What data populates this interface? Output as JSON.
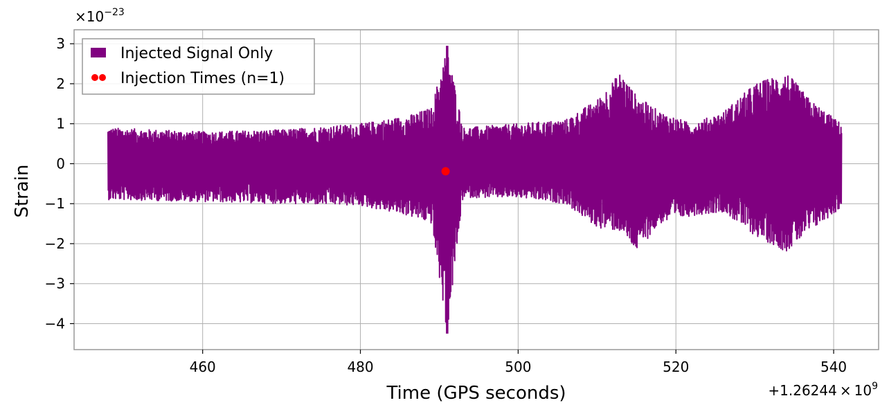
{
  "chart_data": {
    "type": "line",
    "xlabel": "Time (GPS seconds)",
    "ylabel": "Strain",
    "x_offset_label": "+1.26244",
    "x_offset_label_times": "×",
    "x_offset_label_base": "10",
    "x_offset_label_exp": "9",
    "y_multiplier_prefix": "×10",
    "y_multiplier_exp": "−23",
    "xlim": [
      443.7,
      545.7
    ],
    "ylim": [
      -4.65,
      3.35
    ],
    "x_ticks": [
      460,
      480,
      500,
      520,
      540
    ],
    "y_ticks": [
      -4,
      -3,
      -2,
      -1,
      0,
      1,
      2,
      3
    ],
    "x_tick_labels": [
      "460",
      "480",
      "500",
      "520",
      "540"
    ],
    "y_tick_labels": [
      "−4",
      "−3",
      "−2",
      "−1",
      "0",
      "1",
      "2",
      "3"
    ],
    "grid": true,
    "legend_position": "top-left",
    "series": [
      {
        "name": "Injected Signal Only",
        "color": "#800080",
        "x_range": [
          448,
          541
        ],
        "envelope": [
          {
            "x": 448,
            "upper": 0.9,
            "lower": -0.9
          },
          {
            "x": 460,
            "upper": 0.8,
            "lower": -0.95
          },
          {
            "x": 470,
            "upper": 0.85,
            "lower": -1.0
          },
          {
            "x": 480,
            "upper": 1.0,
            "lower": -1.05
          },
          {
            "x": 486,
            "upper": 1.2,
            "lower": -1.3
          },
          {
            "x": 489,
            "upper": 1.4,
            "lower": -1.5
          },
          {
            "x": 491,
            "upper": 2.95,
            "lower": -4.25
          },
          {
            "x": 493,
            "upper": 0.9,
            "lower": -0.85
          },
          {
            "x": 500,
            "upper": 1.0,
            "lower": -0.85
          },
          {
            "x": 506,
            "upper": 1.1,
            "lower": -1.0
          },
          {
            "x": 510,
            "upper": 1.6,
            "lower": -1.6
          },
          {
            "x": 513,
            "upper": 2.3,
            "lower": -1.7
          },
          {
            "x": 515,
            "upper": 1.7,
            "lower": -2.2
          },
          {
            "x": 518,
            "upper": 1.3,
            "lower": -1.5
          },
          {
            "x": 522,
            "upper": 1.0,
            "lower": -1.3
          },
          {
            "x": 526,
            "upper": 1.3,
            "lower": -1.2
          },
          {
            "x": 530,
            "upper": 2.0,
            "lower": -1.8
          },
          {
            "x": 534,
            "upper": 2.3,
            "lower": -2.2
          },
          {
            "x": 537,
            "upper": 1.6,
            "lower": -1.7
          },
          {
            "x": 541,
            "upper": 1.0,
            "lower": -1.1
          }
        ]
      },
      {
        "name": "Injection Times (n=1)",
        "color": "#ff0000",
        "type": "scatter",
        "points": [
          {
            "x": 490.8,
            "y": -0.19
          }
        ]
      }
    ]
  }
}
